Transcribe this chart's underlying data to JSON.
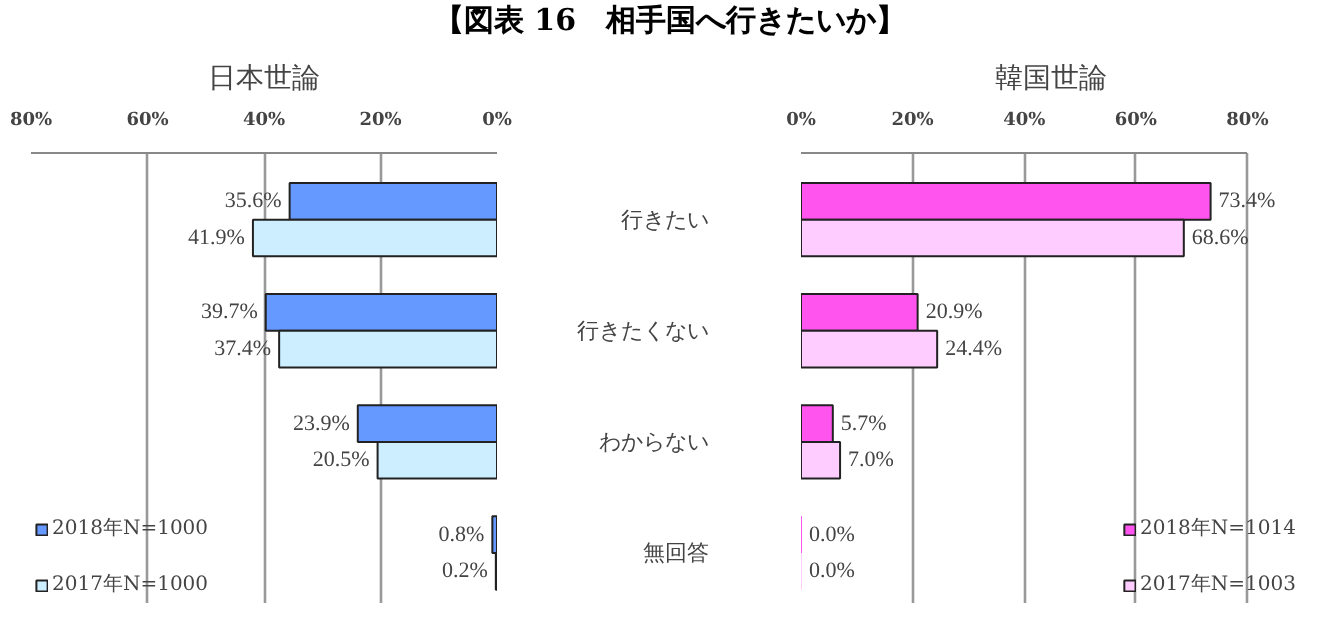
{
  "chart_data": [
    {
      "type": "bar",
      "orientation": "horizontal",
      "title": "日本世論",
      "annotations": [
        "【図表 16　相手国へ行きたいか】"
      ],
      "categories": [
        null,
        null,
        null,
        null
      ],
      "series": [
        {
          "name": "2018年N=1000",
          "color": "#6699ff",
          "values": [
            35.6,
            39.7,
            23.9,
            0.8
          ],
          "value_labels": [
            "35.6%",
            "39.7%",
            "23.9%",
            "0.8%"
          ]
        },
        {
          "name": "2017年N=1000",
          "color": "#cceeff",
          "values": [
            41.9,
            37.4,
            20.5,
            0.2
          ],
          "value_labels": [
            "41.9%",
            "37.4%",
            "20.5%",
            "0.2%"
          ]
        }
      ],
      "xlim": [
        80,
        0
      ],
      "xticks": [
        {
          "value": 80,
          "label": "80%"
        },
        {
          "value": 60,
          "label": "60%"
        },
        {
          "value": 40,
          "label": "40%"
        },
        {
          "value": 20,
          "label": "20%"
        },
        {
          "value": 0,
          "label": "0%"
        }
      ],
      "tick_labels": "x",
      "grid": "x",
      "legend": "bottom left"
    },
    {
      "type": "bar",
      "orientation": "horizontal",
      "title": "韓国世論",
      "categories": [
        "行きたい",
        "行きたくない",
        "わからない",
        "無回答"
      ],
      "series": [
        {
          "name": "2018年N=1014",
          "color": "#ff55ee",
          "values": [
            73.4,
            20.9,
            5.7,
            0.0
          ],
          "value_labels": [
            "73.4%",
            "20.9%",
            "5.7%",
            "0.0%"
          ]
        },
        {
          "name": "2017年N=1003",
          "color": "#ffccff",
          "values": [
            68.6,
            24.4,
            7.0,
            0.0
          ],
          "value_labels": [
            "68.6%",
            "24.4%",
            "7.0%",
            "0.0%"
          ]
        }
      ],
      "xlim": [
        0,
        80
      ],
      "xticks": [
        {
          "value": 0,
          "label": "0%"
        },
        {
          "value": 20,
          "label": "20%"
        },
        {
          "value": 40,
          "label": "40%"
        },
        {
          "value": 60,
          "label": "60%"
        },
        {
          "value": 80,
          "label": "80%"
        }
      ],
      "grid": "x",
      "legend": "bottom right"
    }
  ]
}
